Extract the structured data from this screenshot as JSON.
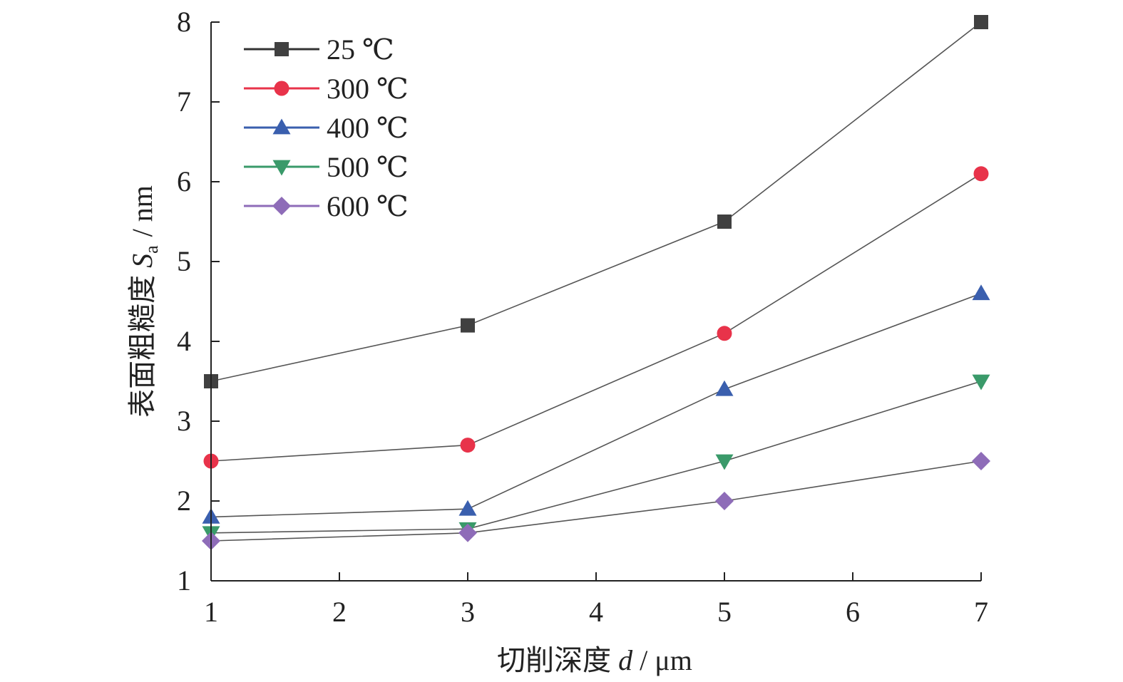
{
  "chart_data": {
    "type": "line",
    "title": "",
    "x": [
      1,
      3,
      5,
      7
    ],
    "xlim": [
      1,
      7
    ],
    "ylim": [
      1,
      8
    ],
    "xticks": [
      1,
      2,
      3,
      4,
      5,
      6,
      7
    ],
    "yticks": [
      1,
      2,
      3,
      4,
      5,
      6,
      7,
      8
    ],
    "xlabel": {
      "prefix": "切削深度 ",
      "symbol": "d",
      "suffix": " / μm"
    },
    "ylabel": {
      "prefix": "表面粗糙度 ",
      "symbol": "S",
      "subscript": "a",
      "suffix": " / nm"
    },
    "grid": false,
    "legend_position": "top-left",
    "series": [
      {
        "name": "25 ℃",
        "marker": "square",
        "color": "#404040",
        "values": [
          3.5,
          4.2,
          5.5,
          8.0
        ]
      },
      {
        "name": "300 ℃",
        "marker": "circle",
        "color": "#e8334a",
        "values": [
          2.5,
          2.7,
          4.1,
          6.1
        ]
      },
      {
        "name": "400 ℃",
        "marker": "triangle-up",
        "color": "#3a5fae",
        "values": [
          1.8,
          1.9,
          3.4,
          4.6
        ]
      },
      {
        "name": "500 ℃",
        "marker": "triangle-down",
        "color": "#3a9a6a",
        "values": [
          1.6,
          1.65,
          2.5,
          3.5
        ]
      },
      {
        "name": "600 ℃",
        "marker": "diamond",
        "color": "#8e6cb8",
        "values": [
          1.5,
          1.6,
          2.0,
          2.5
        ]
      }
    ],
    "line_color": "#555555"
  }
}
